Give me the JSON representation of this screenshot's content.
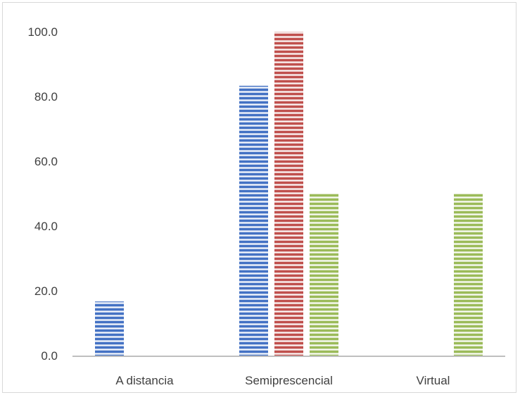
{
  "chart_data": {
    "type": "bar",
    "categories": [
      "A distancia",
      "Semiprescencial",
      "Virtual"
    ],
    "series": [
      {
        "color": "#4472c4",
        "values": [
          16.7,
          83.3,
          0
        ]
      },
      {
        "color": "#c0504d",
        "values": [
          0,
          100.0,
          0
        ]
      },
      {
        "color": "#9bbb59",
        "values": [
          0,
          50.0,
          50.0
        ]
      }
    ],
    "yticks": [
      "0.0",
      "20.0",
      "40.0",
      "60.0",
      "80.0",
      "100.0"
    ],
    "ylim": [
      0,
      100
    ],
    "grid": false,
    "legend": "none",
    "axis_color": "#bfbfbf",
    "bar_pattern": "horizontal-stripes"
  }
}
